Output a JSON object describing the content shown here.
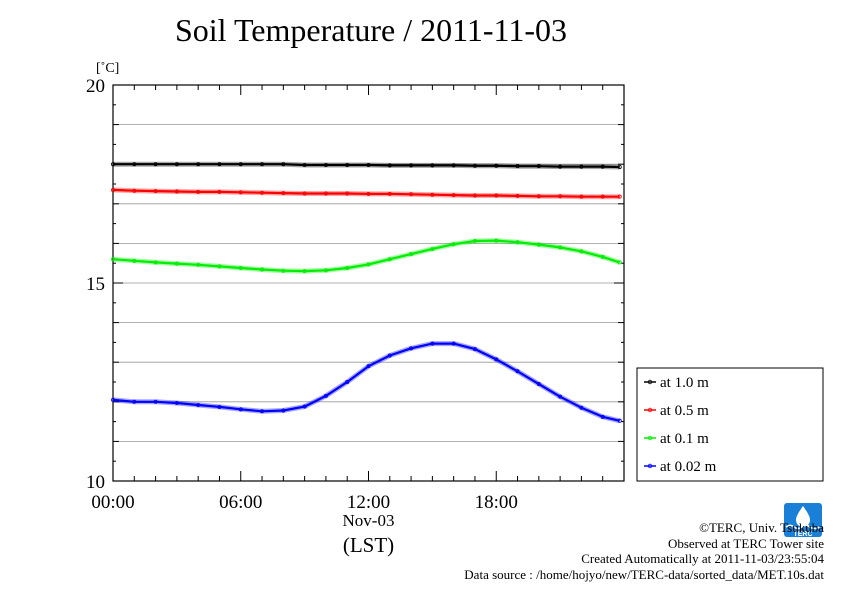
{
  "title": "Soil Temperature / 2011-11-03",
  "chart_data": {
    "type": "line",
    "title": "Soil Temperature / 2011-11-03",
    "ylabel": "[˚C]",
    "ylim": [
      10,
      20
    ],
    "yticks": [
      "20",
      "15",
      "10"
    ],
    "xlim_hours": [
      0,
      24
    ],
    "xticks": [
      "00:00",
      "06:00",
      "12:00",
      "18:00"
    ],
    "x_date_label": "Nov-03",
    "x_unit_label": "(LST)",
    "grid": true,
    "legend_position": "right",
    "x_hours": [
      0,
      1,
      2,
      3,
      4,
      5,
      6,
      7,
      8,
      9,
      10,
      11,
      12,
      13,
      14,
      15,
      16,
      17,
      18,
      19,
      20,
      21,
      22,
      23,
      23.8
    ],
    "series": [
      {
        "name": "at 1.0 m",
        "color": "#000000",
        "values": [
          18.0,
          18.0,
          18.0,
          18.0,
          18.0,
          18.0,
          18.0,
          18.0,
          18.0,
          17.98,
          17.98,
          17.98,
          17.98,
          17.97,
          17.97,
          17.97,
          17.97,
          17.96,
          17.96,
          17.95,
          17.95,
          17.94,
          17.94,
          17.94,
          17.93
        ]
      },
      {
        "name": "at 0.5 m",
        "color": "#ff0000",
        "values": [
          17.35,
          17.33,
          17.32,
          17.31,
          17.3,
          17.3,
          17.29,
          17.28,
          17.27,
          17.26,
          17.26,
          17.26,
          17.25,
          17.25,
          17.24,
          17.23,
          17.22,
          17.21,
          17.21,
          17.2,
          17.19,
          17.19,
          17.18,
          17.18,
          17.18
        ]
      },
      {
        "name": "at 0.1 m",
        "color": "#00ee00",
        "values": [
          15.6,
          15.56,
          15.52,
          15.49,
          15.46,
          15.42,
          15.38,
          15.34,
          15.31,
          15.3,
          15.32,
          15.38,
          15.47,
          15.6,
          15.73,
          15.86,
          15.98,
          16.06,
          16.07,
          16.03,
          15.97,
          15.9,
          15.8,
          15.66,
          15.52
        ]
      },
      {
        "name": "at 0.02 m",
        "color": "#0000ff",
        "values": [
          12.05,
          12.0,
          12.0,
          11.97,
          11.92,
          11.87,
          11.81,
          11.76,
          11.78,
          11.88,
          12.15,
          12.5,
          12.9,
          13.17,
          13.35,
          13.47,
          13.47,
          13.33,
          13.07,
          12.77,
          12.45,
          12.13,
          11.85,
          11.62,
          11.52
        ]
      }
    ]
  },
  "footer": {
    "copyright": "©TERC, Univ. Tsukuba",
    "observed": "Observed at TERC Tower site",
    "created": "Created Automatically at 2011-11-03/23:55:04",
    "source": "Data source : /home/hojyo/new/TERC-data/sorted_data/MET.10s.dat"
  },
  "logo": {
    "text": "TERC",
    "color": "#1a7fd6"
  }
}
